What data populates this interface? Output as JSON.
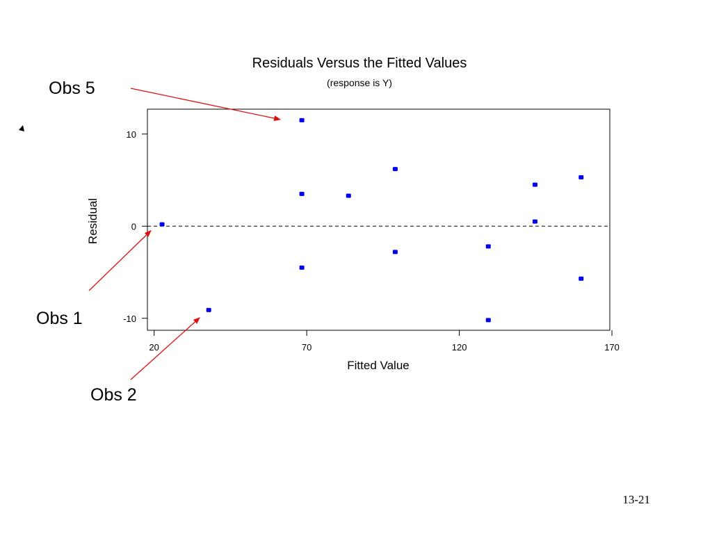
{
  "chart_data": {
    "type": "scatter",
    "title": "Residuals Versus the Fitted Values",
    "subtitle": "(response is Y)",
    "xlabel": "Fitted Value",
    "ylabel": "Residual",
    "xlim": [
      17.8,
      169.3
    ],
    "ylim": [
      -11.3,
      12.7
    ],
    "xticks": [
      20,
      70,
      120,
      170
    ],
    "yticks": [
      10,
      0,
      -10
    ],
    "reference_line": 0,
    "grid": false,
    "legend": "none",
    "points": [
      {
        "x": 22.6,
        "y": 0.2
      },
      {
        "x": 37.9,
        "y": -9.1
      },
      {
        "x": 68.4,
        "y": 11.5
      },
      {
        "x": 68.4,
        "y": 3.5
      },
      {
        "x": 68.4,
        "y": -4.5
      },
      {
        "x": 83.7,
        "y": 3.3
      },
      {
        "x": 99.0,
        "y": 6.2
      },
      {
        "x": 99.0,
        "y": -2.8
      },
      {
        "x": 129.5,
        "y": -2.2
      },
      {
        "x": 129.5,
        "y": -10.2
      },
      {
        "x": 144.8,
        "y": 4.5
      },
      {
        "x": 144.8,
        "y": 0.5
      },
      {
        "x": 159.9,
        "y": 5.3
      },
      {
        "x": 159.9,
        "y": -5.7
      }
    ],
    "annotations": [
      {
        "label": "Obs 5",
        "target_point": 2
      },
      {
        "label": "Obs 1",
        "target_point": 0
      },
      {
        "label": "Obs 2",
        "target_point": 1
      }
    ]
  },
  "colors": {
    "points": "#0000ee",
    "arrows": "#e01010",
    "axes": "#000000"
  },
  "page_number": "13-21"
}
